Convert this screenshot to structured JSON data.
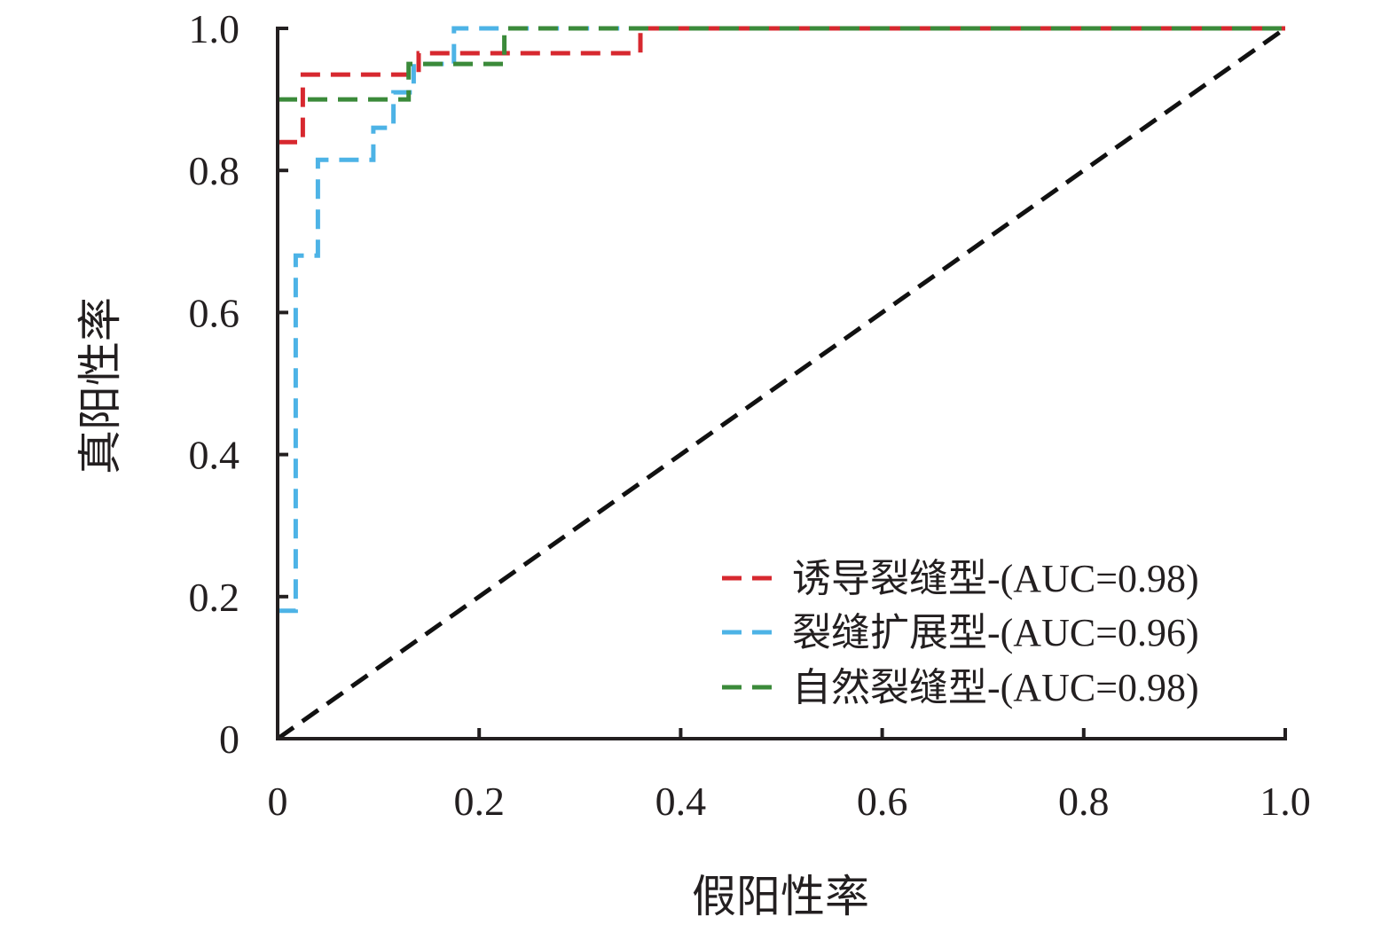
{
  "chart_data": {
    "type": "line",
    "title": "",
    "xlabel": "假阳性率",
    "ylabel": "真阳性率",
    "xlim": [
      0,
      1
    ],
    "ylim": [
      0,
      1
    ],
    "x_ticks": [
      0,
      0.2,
      0.4,
      0.6,
      0.8,
      1.0
    ],
    "x_tick_labels": [
      "0",
      "0.2",
      "0.4",
      "0.6",
      "0.8",
      "1.0"
    ],
    "y_ticks": [
      0,
      0.2,
      0.4,
      0.6,
      0.8,
      1.0
    ],
    "y_tick_labels": [
      "0",
      "0.2",
      "0.4",
      "0.6",
      "0.8",
      "1.0"
    ],
    "grid": false,
    "legend_position": "bottom-right",
    "line_style": "dashed",
    "series": [
      {
        "name": "诱导裂缝型-(AUC=0.98)",
        "color": "#d7282f",
        "points": [
          [
            0,
            0.84
          ],
          [
            0.025,
            0.84
          ],
          [
            0.025,
            0.935
          ],
          [
            0.14,
            0.935
          ],
          [
            0.14,
            0.965
          ],
          [
            0.36,
            0.965
          ],
          [
            0.36,
            1.0
          ],
          [
            1.0,
            1.0
          ]
        ]
      },
      {
        "name": "裂缝扩展型-(AUC=0.96)",
        "color": "#4db3e6",
        "points": [
          [
            0,
            0.18
          ],
          [
            0.018,
            0.18
          ],
          [
            0.018,
            0.68
          ],
          [
            0.04,
            0.68
          ],
          [
            0.04,
            0.815
          ],
          [
            0.095,
            0.815
          ],
          [
            0.095,
            0.86
          ],
          [
            0.115,
            0.86
          ],
          [
            0.115,
            0.91
          ],
          [
            0.135,
            0.91
          ],
          [
            0.135,
            0.95
          ],
          [
            0.175,
            0.95
          ],
          [
            0.175,
            1.0
          ],
          [
            1.0,
            1.0
          ]
        ]
      },
      {
        "name": "自然裂缝型-(AUC=0.98)",
        "color": "#3b8a3a",
        "points": [
          [
            0,
            0.9
          ],
          [
            0.13,
            0.9
          ],
          [
            0.13,
            0.95
          ],
          [
            0.225,
            0.95
          ],
          [
            0.225,
            1.0
          ],
          [
            1.0,
            1.0
          ]
        ]
      },
      {
        "name": "",
        "color": "#111111",
        "points": [
          [
            0,
            0
          ],
          [
            1,
            1
          ]
        ]
      }
    ]
  }
}
